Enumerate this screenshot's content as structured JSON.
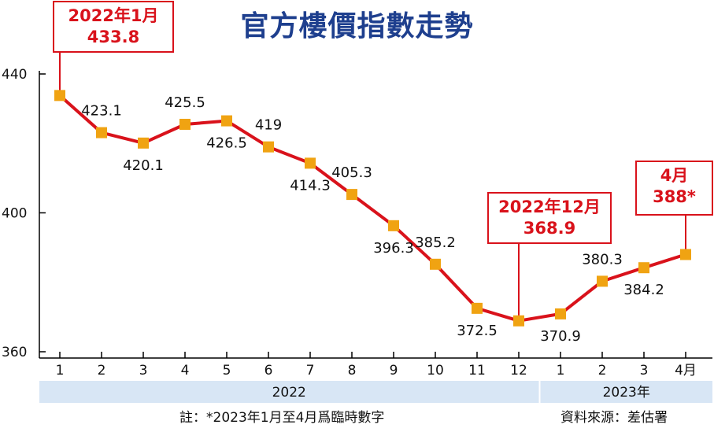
{
  "title": "官方樓價指數走勢",
  "footer": {
    "note": "註：*2023年1月至4月爲臨時數字",
    "source": "資料來源：差估署"
  },
  "colors": {
    "line": "#d9121b",
    "marker": "#f0a312",
    "callout_border": "#d9121b",
    "callout_text": "#d9121b",
    "title": "#1e3f8e",
    "year_band": "#d8e6f5"
  },
  "chart_data": {
    "type": "line",
    "title": "官方樓價指數走勢",
    "xlabel": "",
    "ylabel": "",
    "ylim": [
      360,
      440
    ],
    "yticks": [
      "360",
      "400",
      "440"
    ],
    "grid": false,
    "categories": [
      "1",
      "2",
      "3",
      "4",
      "5",
      "6",
      "7",
      "8",
      "9",
      "10",
      "11",
      "12",
      "1",
      "2",
      "3",
      "4月"
    ],
    "year_groups": [
      {
        "label": "2022",
        "count": 12
      },
      {
        "label": "2023年",
        "count": 4
      }
    ],
    "series": [
      {
        "values": [
          433.8,
          423.1,
          420.1,
          425.5,
          426.5,
          419,
          414.3,
          405.3,
          396.3,
          385.2,
          372.5,
          368.9,
          370.9,
          380.3,
          384.2,
          388
        ],
        "labels": [
          "",
          "423.1",
          "420.1",
          "425.5",
          "426.5",
          "419",
          "414.3",
          "405.3",
          "396.3",
          "385.2",
          "372.5",
          "",
          "370.9",
          "380.3",
          "384.2",
          ""
        ]
      }
    ],
    "callouts": [
      {
        "index": 0,
        "lines": [
          "2022年1月",
          "433.8"
        ]
      },
      {
        "index": 11,
        "lines": [
          "2022年12月",
          "368.9"
        ]
      },
      {
        "index": 15,
        "lines": [
          "4月",
          "388*"
        ]
      }
    ]
  }
}
